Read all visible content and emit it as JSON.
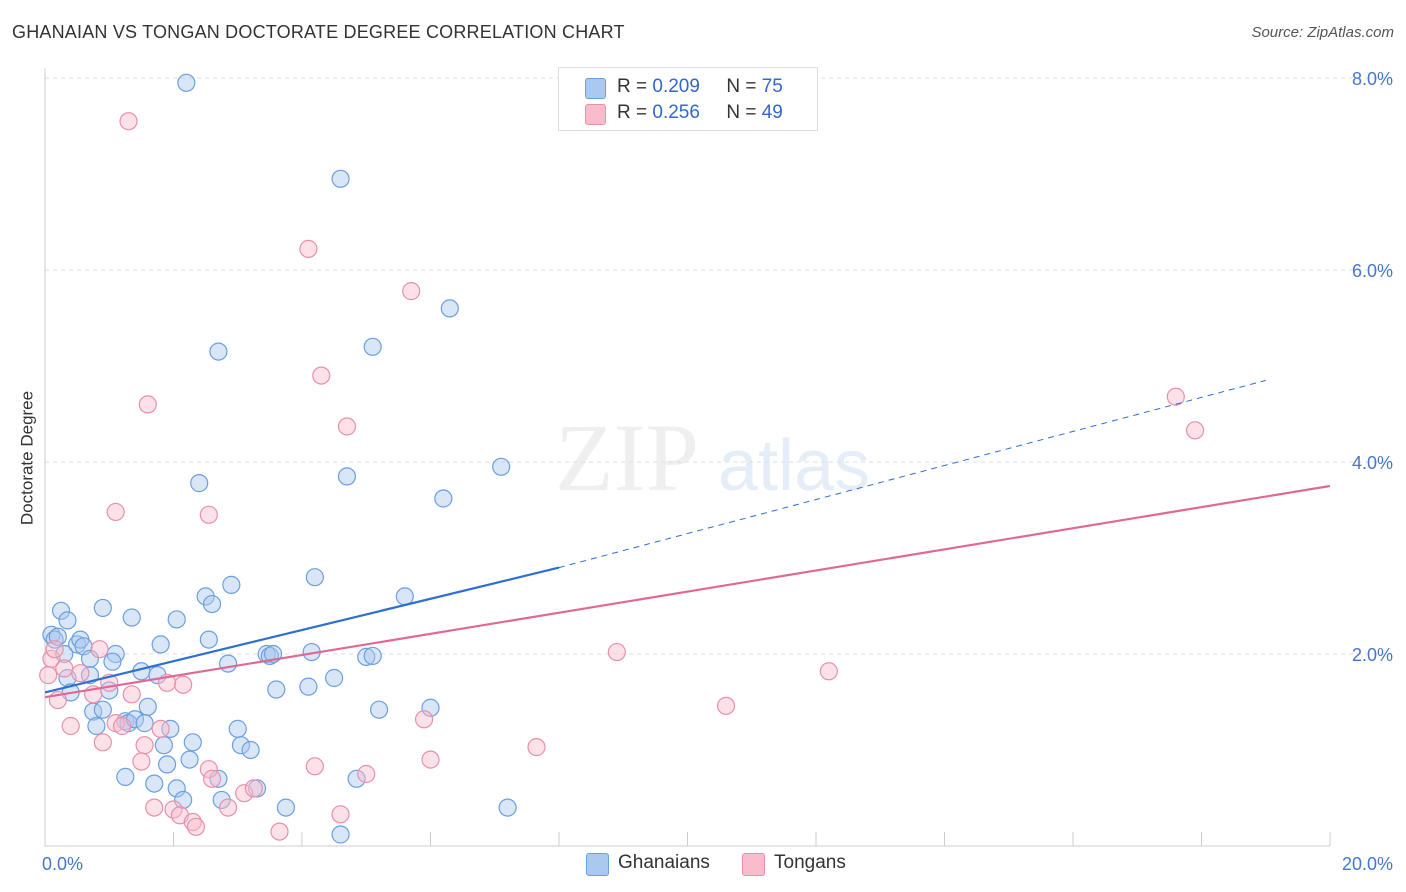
{
  "title": "GHANAIAN VS TONGAN DOCTORATE DEGREE CORRELATION CHART",
  "source": "Source: ZipAtlas.com",
  "watermark": {
    "zip": "ZIP",
    "atlas": "atlas"
  },
  "legend": {
    "rows": [
      {
        "r_label": "R =",
        "r_value": "0.209",
        "n_label": "N =",
        "n_value": "75"
      },
      {
        "r_label": "R =",
        "r_value": "0.256",
        "n_label": "N =",
        "n_value": "49"
      }
    ]
  },
  "bottom_legend": [
    "Ghanaians",
    "Tongans"
  ],
  "chart_data": {
    "type": "scatter",
    "title": "GHANAIAN VS TONGAN DOCTORATE DEGREE CORRELATION CHART",
    "xlabel": "",
    "ylabel": "Doctorate Degree",
    "xlim": [
      0,
      20
    ],
    "ylim": [
      0,
      8
    ],
    "x_tick_labels": [
      "0.0%",
      "20.0%"
    ],
    "y_ticks": [
      2,
      4,
      6,
      8
    ],
    "y_tick_labels": [
      "2.0%",
      "4.0%",
      "6.0%",
      "8.0%"
    ],
    "grid": true,
    "colors": {
      "ghanaians_fill": "#aac8f0",
      "ghanaians_stroke": "#6a9fe0",
      "ghanaians_line": "#2f6fd0",
      "tongans_fill": "#f8bccd",
      "tongans_stroke": "#e890aa",
      "tongans_line": "#e06894",
      "grid": "#dddddd",
      "axis": "#cccccc"
    },
    "series": [
      {
        "name": "Ghanaians",
        "R": 0.209,
        "N": 75,
        "trend": {
          "x0": 0,
          "y0": 1.6,
          "x1": 8.0,
          "y1": 2.9,
          "dashed_to_x": 19.0,
          "dashed_to_y": 4.85
        },
        "points": [
          [
            2.2,
            7.95
          ],
          [
            4.6,
            6.95
          ],
          [
            6.3,
            5.6
          ],
          [
            2.7,
            5.15
          ],
          [
            5.1,
            5.2
          ],
          [
            4.7,
            3.85
          ],
          [
            7.1,
            3.95
          ],
          [
            6.2,
            3.62
          ],
          [
            2.4,
            3.78
          ],
          [
            0.25,
            2.45
          ],
          [
            0.35,
            2.35
          ],
          [
            0.9,
            2.48
          ],
          [
            1.35,
            2.38
          ],
          [
            2.05,
            2.36
          ],
          [
            2.5,
            2.6
          ],
          [
            2.6,
            2.52
          ],
          [
            2.9,
            2.72
          ],
          [
            4.2,
            2.8
          ],
          [
            5.6,
            2.6
          ],
          [
            0.1,
            2.2
          ],
          [
            0.15,
            2.15
          ],
          [
            0.2,
            2.18
          ],
          [
            0.5,
            2.1
          ],
          [
            0.55,
            2.15
          ],
          [
            0.6,
            2.08
          ],
          [
            1.1,
            2.0
          ],
          [
            1.8,
            2.1
          ],
          [
            2.55,
            2.15
          ],
          [
            0.3,
            2.0
          ],
          [
            0.7,
            1.95
          ],
          [
            1.05,
            1.92
          ],
          [
            1.5,
            1.82
          ],
          [
            2.85,
            1.9
          ],
          [
            3.45,
            2.0
          ],
          [
            3.5,
            1.98
          ],
          [
            3.55,
            2.0
          ],
          [
            4.15,
            2.02
          ],
          [
            5.0,
            1.97
          ],
          [
            5.1,
            1.98
          ],
          [
            0.35,
            1.75
          ],
          [
            0.4,
            1.6
          ],
          [
            0.7,
            1.78
          ],
          [
            1.0,
            1.62
          ],
          [
            1.75,
            1.78
          ],
          [
            3.6,
            1.63
          ],
          [
            4.1,
            1.66
          ],
          [
            4.5,
            1.75
          ],
          [
            0.75,
            1.4
          ],
          [
            0.9,
            1.42
          ],
          [
            0.8,
            1.25
          ],
          [
            1.25,
            1.3
          ],
          [
            1.3,
            1.28
          ],
          [
            1.4,
            1.32
          ],
          [
            1.55,
            1.28
          ],
          [
            1.6,
            1.45
          ],
          [
            1.95,
            1.22
          ],
          [
            3.0,
            1.22
          ],
          [
            5.2,
            1.42
          ],
          [
            6.0,
            1.44
          ],
          [
            1.85,
            1.05
          ],
          [
            2.3,
            1.08
          ],
          [
            3.05,
            1.05
          ],
          [
            3.2,
            1.0
          ],
          [
            2.25,
            0.9
          ],
          [
            1.9,
            0.85
          ],
          [
            2.7,
            0.7
          ],
          [
            1.25,
            0.72
          ],
          [
            1.7,
            0.65
          ],
          [
            2.05,
            0.6
          ],
          [
            3.3,
            0.6
          ],
          [
            4.85,
            0.7
          ],
          [
            2.15,
            0.48
          ],
          [
            2.75,
            0.48
          ],
          [
            3.75,
            0.4
          ],
          [
            7.2,
            0.4
          ],
          [
            4.6,
            0.12
          ]
        ]
      },
      {
        "name": "Tongans",
        "R": 0.256,
        "N": 49,
        "trend": {
          "x0": 0,
          "y0": 1.55,
          "x1": 20,
          "y1": 3.75
        },
        "points": [
          [
            1.3,
            7.55
          ],
          [
            4.1,
            6.22
          ],
          [
            5.7,
            5.78
          ],
          [
            4.3,
            4.9
          ],
          [
            1.6,
            4.6
          ],
          [
            4.7,
            4.37
          ],
          [
            17.6,
            4.68
          ],
          [
            17.9,
            4.33
          ],
          [
            1.1,
            3.48
          ],
          [
            2.55,
            3.45
          ],
          [
            0.1,
            1.95
          ],
          [
            0.15,
            2.05
          ],
          [
            0.3,
            1.85
          ],
          [
            0.55,
            1.8
          ],
          [
            0.85,
            2.05
          ],
          [
            0.2,
            1.52
          ],
          [
            0.75,
            1.58
          ],
          [
            1.0,
            1.7
          ],
          [
            1.35,
            1.58
          ],
          [
            1.9,
            1.7
          ],
          [
            2.15,
            1.68
          ],
          [
            8.9,
            2.02
          ],
          [
            12.2,
            1.82
          ],
          [
            0.4,
            1.25
          ],
          [
            0.9,
            1.08
          ],
          [
            1.1,
            1.28
          ],
          [
            1.2,
            1.25
          ],
          [
            1.55,
            1.05
          ],
          [
            1.8,
            1.22
          ],
          [
            5.9,
            1.32
          ],
          [
            10.6,
            1.46
          ],
          [
            1.5,
            0.88
          ],
          [
            2.55,
            0.8
          ],
          [
            2.6,
            0.7
          ],
          [
            4.2,
            0.83
          ],
          [
            5.0,
            0.75
          ],
          [
            6.0,
            0.9
          ],
          [
            7.65,
            1.03
          ],
          [
            3.1,
            0.55
          ],
          [
            3.25,
            0.6
          ],
          [
            1.7,
            0.4
          ],
          [
            2.0,
            0.38
          ],
          [
            2.1,
            0.32
          ],
          [
            2.85,
            0.4
          ],
          [
            2.3,
            0.25
          ],
          [
            2.35,
            0.2
          ],
          [
            3.65,
            0.15
          ],
          [
            4.6,
            0.33
          ],
          [
            0.05,
            1.78
          ]
        ]
      }
    ]
  }
}
